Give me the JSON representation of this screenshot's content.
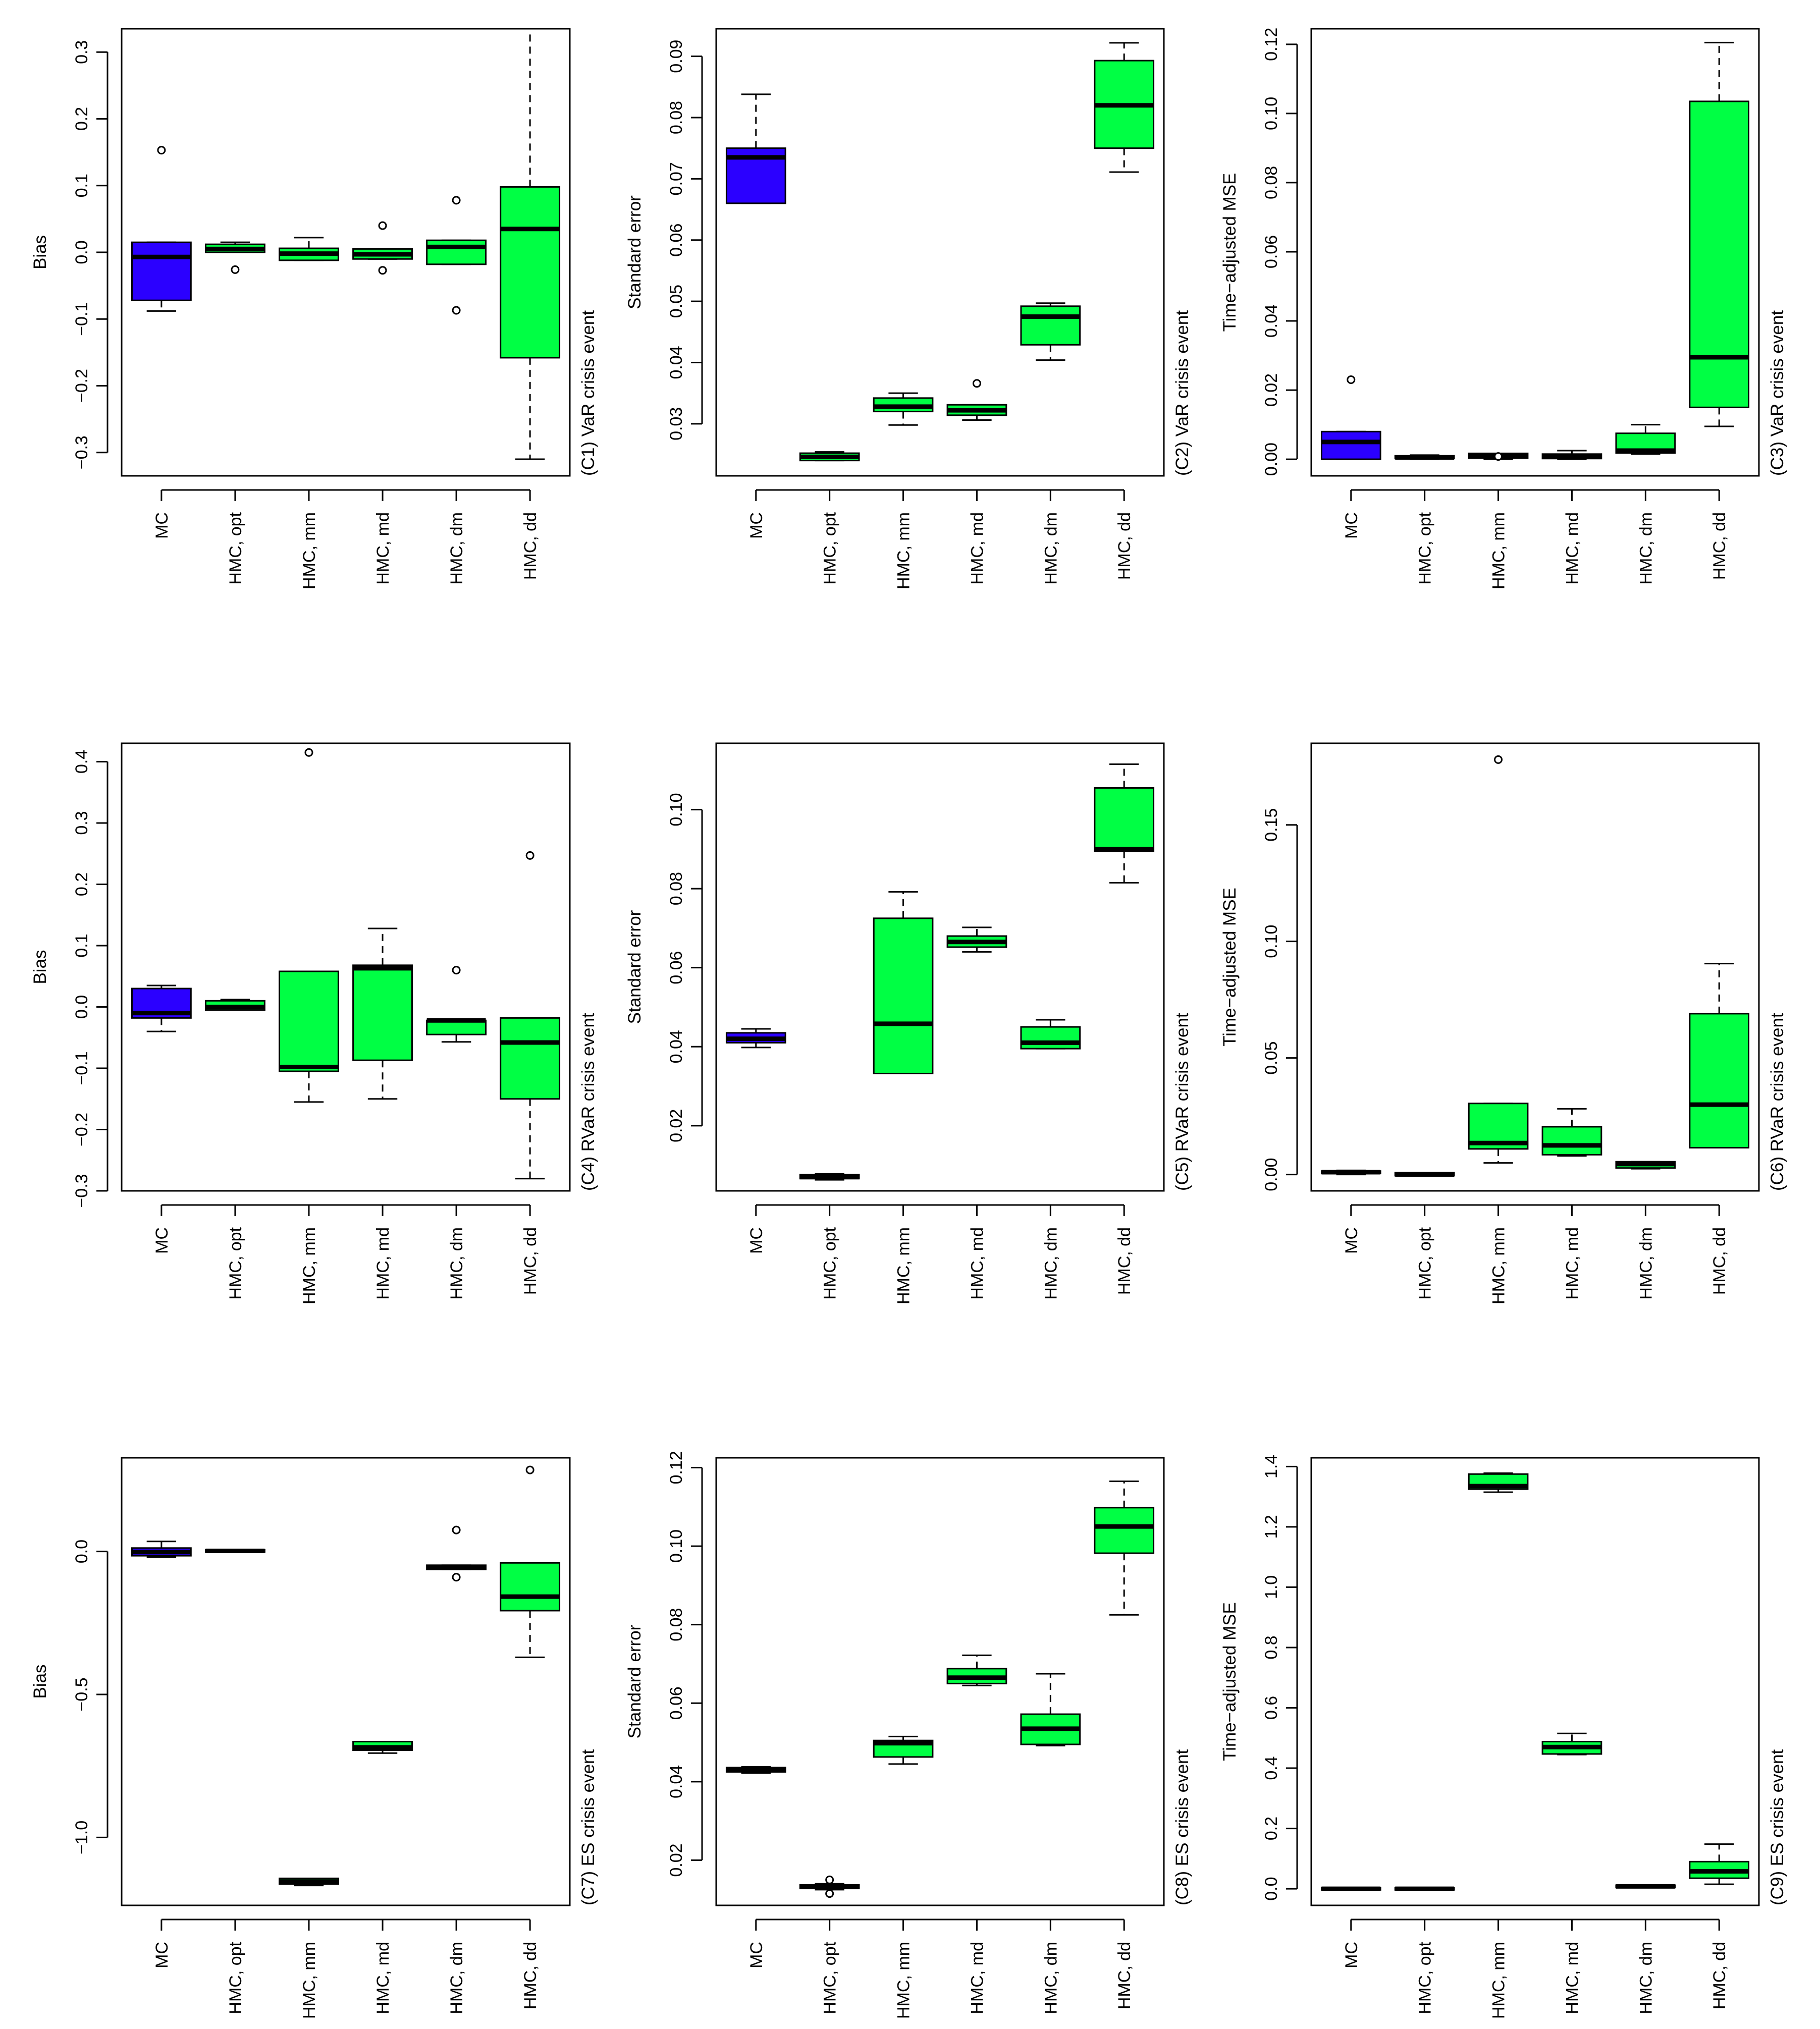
{
  "colors": {
    "mc": "#2b00ff",
    "hmc": "#00ff44",
    "line": "#000000"
  },
  "chart_data": [
    {
      "id": "C1",
      "type": "boxplot",
      "title": "(C1) VaR crisis event",
      "ylabel": "Bias",
      "ylim": [
        -0.335,
        0.335
      ],
      "yticks": [
        -0.3,
        -0.2,
        -0.1,
        0.0,
        0.1,
        0.2,
        0.3
      ],
      "ytick_labels": [
        "−0.3",
        "−0.2",
        "−0.1",
        "0.0",
        "0.1",
        "0.2",
        "0.3"
      ],
      "categories": [
        "MC",
        "HMC, opt",
        "HMC, mm",
        "HMC, md",
        "HMC, dm",
        "HMC, dd"
      ],
      "boxes": [
        {
          "name": "MC",
          "color": "mc",
          "whisker_low": -0.088,
          "q1": -0.072,
          "median": -0.007,
          "q3": 0.015,
          "whisker_high": 0.015,
          "outliers": [
            0.153
          ]
        },
        {
          "name": "HMC, opt",
          "color": "hmc",
          "whisker_low": 0.0,
          "q1": 0.0,
          "median": 0.005,
          "q3": 0.012,
          "whisker_high": 0.015,
          "outliers": [
            -0.026
          ]
        },
        {
          "name": "HMC, mm",
          "color": "hmc",
          "whisker_low": -0.012,
          "q1": -0.012,
          "median": -0.002,
          "q3": 0.006,
          "whisker_high": 0.022,
          "outliers": []
        },
        {
          "name": "HMC, md",
          "color": "hmc",
          "whisker_low": -0.01,
          "q1": -0.01,
          "median": -0.003,
          "q3": 0.005,
          "whisker_high": 0.005,
          "outliers": [
            0.04,
            -0.027
          ]
        },
        {
          "name": "HMC, dm",
          "color": "hmc",
          "whisker_low": -0.018,
          "q1": -0.018,
          "median": 0.008,
          "q3": 0.018,
          "whisker_high": 0.018,
          "outliers": [
            0.078,
            -0.087
          ]
        },
        {
          "name": "HMC, dd",
          "color": "hmc",
          "whisker_low": -0.31,
          "q1": -0.158,
          "median": 0.035,
          "q3": 0.098,
          "whisker_high": 0.335,
          "outliers": []
        }
      ]
    },
    {
      "id": "C2",
      "type": "boxplot",
      "title": "(C2) VaR crisis event",
      "ylabel": "Standard error",
      "ylim": [
        0.0215,
        0.0945
      ],
      "yticks": [
        0.03,
        0.04,
        0.05,
        0.06,
        0.07,
        0.08,
        0.09
      ],
      "ytick_labels": [
        "0.03",
        "0.04",
        "0.05",
        "0.06",
        "0.07",
        "0.08",
        "0.09"
      ],
      "categories": [
        "MC",
        "HMC, opt",
        "HMC, mm",
        "HMC, md",
        "HMC, dm",
        "HMC, dd"
      ],
      "boxes": [
        {
          "name": "MC",
          "color": "mc",
          "whisker_low": 0.066,
          "q1": 0.066,
          "median": 0.0735,
          "q3": 0.075,
          "whisker_high": 0.0838,
          "outliers": []
        },
        {
          "name": "HMC, opt",
          "color": "hmc",
          "whisker_low": 0.024,
          "q1": 0.024,
          "median": 0.0246,
          "q3": 0.0252,
          "whisker_high": 0.0254,
          "outliers": []
        },
        {
          "name": "HMC, mm",
          "color": "hmc",
          "whisker_low": 0.0298,
          "q1": 0.032,
          "median": 0.0328,
          "q3": 0.0342,
          "whisker_high": 0.035,
          "outliers": []
        },
        {
          "name": "HMC, md",
          "color": "hmc",
          "whisker_low": 0.0306,
          "q1": 0.0314,
          "median": 0.0322,
          "q3": 0.0331,
          "whisker_high": 0.0331,
          "outliers": [
            0.0366
          ]
        },
        {
          "name": "HMC, dm",
          "color": "hmc",
          "whisker_low": 0.0404,
          "q1": 0.0429,
          "median": 0.0475,
          "q3": 0.0492,
          "whisker_high": 0.0497,
          "outliers": []
        },
        {
          "name": "HMC, dd",
          "color": "hmc",
          "whisker_low": 0.0711,
          "q1": 0.075,
          "median": 0.082,
          "q3": 0.0893,
          "whisker_high": 0.0922,
          "outliers": []
        }
      ]
    },
    {
      "id": "C3",
      "type": "boxplot",
      "title": "(C3) VaR crisis event",
      "ylabel": "Time−adjusted MSE",
      "ylim": [
        -0.0048,
        0.1245
      ],
      "yticks": [
        0.0,
        0.02,
        0.04,
        0.06,
        0.08,
        0.1,
        0.12
      ],
      "ytick_labels": [
        "0.00",
        "0.02",
        "0.04",
        "0.06",
        "0.08",
        "0.10",
        "0.12"
      ],
      "categories": [
        "MC",
        "HMC, opt",
        "HMC, mm",
        "HMC, md",
        "HMC, dm",
        "HMC, dd"
      ],
      "boxes": [
        {
          "name": "MC",
          "color": "mc",
          "whisker_low": 0.0,
          "q1": 0.0,
          "median": 0.005,
          "q3": 0.008,
          "whisker_high": 0.008,
          "outliers": [
            0.023
          ]
        },
        {
          "name": "HMC, opt",
          "color": "hmc",
          "whisker_low": 0.0,
          "q1": 0.0002,
          "median": 0.0005,
          "q3": 0.001,
          "whisker_high": 0.0012,
          "outliers": []
        },
        {
          "name": "HMC, mm",
          "color": "hmc",
          "whisker_low": 0.0,
          "q1": 0.0003,
          "median": 0.001,
          "q3": 0.0017,
          "whisker_high": 0.0017,
          "outliers": [
            0.0008
          ]
        },
        {
          "name": "HMC, md",
          "color": "hmc",
          "whisker_low": 0.0,
          "q1": 0.0002,
          "median": 0.0009,
          "q3": 0.0015,
          "whisker_high": 0.0025,
          "outliers": []
        },
        {
          "name": "HMC, dm",
          "color": "hmc",
          "whisker_low": 0.0015,
          "q1": 0.0018,
          "median": 0.0025,
          "q3": 0.0075,
          "whisker_high": 0.01,
          "outliers": []
        },
        {
          "name": "HMC, dd",
          "color": "hmc",
          "whisker_low": 0.0095,
          "q1": 0.015,
          "median": 0.0295,
          "q3": 0.1035,
          "whisker_high": 0.1205,
          "outliers": []
        }
      ]
    },
    {
      "id": "C4",
      "type": "boxplot",
      "title": "(C4) RVaR crisis event",
      "ylabel": "Bias",
      "ylim": [
        -0.3,
        0.43
      ],
      "yticks": [
        -0.3,
        -0.2,
        -0.1,
        0.0,
        0.1,
        0.2,
        0.3,
        0.4
      ],
      "ytick_labels": [
        "−0.3",
        "−0.2",
        "−0.1",
        "0.0",
        "0.1",
        "0.2",
        "0.3",
        "0.4"
      ],
      "categories": [
        "MC",
        "HMC, opt",
        "HMC, mm",
        "HMC, md",
        "HMC, dm",
        "HMC, dd"
      ],
      "boxes": [
        {
          "name": "MC",
          "color": "mc",
          "whisker_low": -0.04,
          "q1": -0.018,
          "median": -0.01,
          "q3": 0.03,
          "whisker_high": 0.035,
          "outliers": []
        },
        {
          "name": "HMC, opt",
          "color": "hmc",
          "whisker_low": -0.005,
          "q1": -0.005,
          "median": 0.0,
          "q3": 0.01,
          "whisker_high": 0.012,
          "outliers": []
        },
        {
          "name": "HMC, mm",
          "color": "hmc",
          "whisker_low": -0.155,
          "q1": -0.105,
          "median": -0.098,
          "q3": 0.058,
          "whisker_high": 0.058,
          "outliers": [
            0.415
          ]
        },
        {
          "name": "HMC, md",
          "color": "hmc",
          "whisker_low": -0.15,
          "q1": -0.087,
          "median": 0.063,
          "q3": 0.068,
          "whisker_high": 0.128,
          "outliers": []
        },
        {
          "name": "HMC, dm",
          "color": "hmc",
          "whisker_low": -0.057,
          "q1": -0.045,
          "median": -0.022,
          "q3": -0.022,
          "whisker_high": -0.022,
          "outliers": [
            0.06
          ]
        },
        {
          "name": "HMC, dd",
          "color": "hmc",
          "whisker_low": -0.28,
          "q1": -0.15,
          "median": -0.058,
          "q3": -0.018,
          "whisker_high": -0.018,
          "outliers": [
            0.247
          ]
        }
      ]
    },
    {
      "id": "C5",
      "type": "boxplot",
      "title": "(C5) RVaR crisis event",
      "ylabel": "Standard error",
      "ylim": [
        0.0035,
        0.1168
      ],
      "yticks": [
        0.02,
        0.04,
        0.06,
        0.08,
        0.1
      ],
      "ytick_labels": [
        "0.02",
        "0.04",
        "0.06",
        "0.08",
        "0.10"
      ],
      "categories": [
        "MC",
        "HMC, opt",
        "HMC, mm",
        "HMC, md",
        "HMC, dm",
        "HMC, dd"
      ],
      "boxes": [
        {
          "name": "MC",
          "color": "mc",
          "whisker_low": 0.0398,
          "q1": 0.041,
          "median": 0.042,
          "q3": 0.0435,
          "whisker_high": 0.0445,
          "outliers": []
        },
        {
          "name": "HMC, opt",
          "color": "hmc",
          "whisker_low": 0.0063,
          "q1": 0.0066,
          "median": 0.007,
          "q3": 0.0076,
          "whisker_high": 0.0078,
          "outliers": []
        },
        {
          "name": "HMC, mm",
          "color": "hmc",
          "whisker_low": 0.0332,
          "q1": 0.0332,
          "median": 0.0458,
          "q3": 0.0725,
          "whisker_high": 0.0792,
          "outliers": []
        },
        {
          "name": "HMC, md",
          "color": "hmc",
          "whisker_low": 0.064,
          "q1": 0.0652,
          "median": 0.0665,
          "q3": 0.068,
          "whisker_high": 0.0702,
          "outliers": []
        },
        {
          "name": "HMC, dm",
          "color": "hmc",
          "whisker_low": 0.0395,
          "q1": 0.0395,
          "median": 0.041,
          "q3": 0.045,
          "whisker_high": 0.0468,
          "outliers": []
        },
        {
          "name": "HMC, dd",
          "color": "hmc",
          "whisker_low": 0.0815,
          "q1": 0.0895,
          "median": 0.09,
          "q3": 0.1055,
          "whisker_high": 0.1115,
          "outliers": []
        }
      ]
    },
    {
      "id": "C6",
      "type": "boxplot",
      "title": "(C6) RVaR crisis event",
      "ylabel": "Time−adjusted MSE",
      "ylim": [
        -0.007,
        0.185
      ],
      "yticks": [
        0.0,
        0.05,
        0.1,
        0.15
      ],
      "ytick_labels": [
        "0.00",
        "0.05",
        "0.10",
        "0.15"
      ],
      "categories": [
        "MC",
        "HMC, opt",
        "HMC, mm",
        "HMC, md",
        "HMC, dm",
        "HMC, dd"
      ],
      "boxes": [
        {
          "name": "MC",
          "color": "mc",
          "whisker_low": 0.0,
          "q1": 0.0005,
          "median": 0.001,
          "q3": 0.0015,
          "whisker_high": 0.0018,
          "outliers": []
        },
        {
          "name": "HMC, opt",
          "color": "hmc",
          "whisker_low": -0.0005,
          "q1": -0.0005,
          "median": 0.0,
          "q3": 0.0008,
          "whisker_high": 0.0008,
          "outliers": []
        },
        {
          "name": "HMC, mm",
          "color": "hmc",
          "whisker_low": 0.005,
          "q1": 0.011,
          "median": 0.0135,
          "q3": 0.0305,
          "whisker_high": 0.0305,
          "outliers": [
            0.178
          ]
        },
        {
          "name": "HMC, md",
          "color": "hmc",
          "whisker_low": 0.008,
          "q1": 0.0085,
          "median": 0.0125,
          "q3": 0.0205,
          "whisker_high": 0.0282,
          "outliers": []
        },
        {
          "name": "HMC, dm",
          "color": "hmc",
          "whisker_low": 0.0025,
          "q1": 0.0028,
          "median": 0.0045,
          "q3": 0.0055,
          "whisker_high": 0.0055,
          "outliers": []
        },
        {
          "name": "HMC, dd",
          "color": "hmc",
          "whisker_low": 0.0115,
          "q1": 0.0115,
          "median": 0.03,
          "q3": 0.069,
          "whisker_high": 0.0905,
          "outliers": []
        }
      ]
    },
    {
      "id": "C7",
      "type": "boxplot",
      "title": "(C7) ES crisis event",
      "ylabel": "Bias",
      "ylim": [
        -1.2375,
        0.3275
      ],
      "yticks": [
        -1.0,
        -0.5,
        0.0
      ],
      "ytick_labels": [
        "−1.0",
        "−0.5",
        "0.0"
      ],
      "categories": [
        "MC",
        "HMC, opt",
        "HMC, mm",
        "HMC, md",
        "HMC, dm",
        "HMC, dd"
      ],
      "boxes": [
        {
          "name": "MC",
          "color": "mc",
          "whisker_low": -0.02,
          "q1": -0.015,
          "median": -0.002,
          "q3": 0.012,
          "whisker_high": 0.035,
          "outliers": []
        },
        {
          "name": "HMC, opt",
          "color": "hmc",
          "whisker_low": -0.002,
          "q1": -0.002,
          "median": 0.002,
          "q3": 0.006,
          "whisker_high": 0.006,
          "outliers": []
        },
        {
          "name": "HMC, mm",
          "color": "hmc",
          "whisker_low": -1.168,
          "q1": -1.163,
          "median": -1.154,
          "q3": -1.143,
          "whisker_high": -1.143,
          "outliers": []
        },
        {
          "name": "HMC, md",
          "color": "hmc",
          "whisker_low": -0.705,
          "q1": -0.695,
          "median": -0.685,
          "q3": -0.665,
          "whisker_high": -0.665,
          "outliers": []
        },
        {
          "name": "HMC, dm",
          "color": "hmc",
          "whisker_low": -0.063,
          "q1": -0.063,
          "median": -0.055,
          "q3": -0.048,
          "whisker_high": -0.048,
          "outliers": [
            0.075,
            -0.09
          ]
        },
        {
          "name": "HMC, dd",
          "color": "hmc",
          "whisker_low": -0.37,
          "q1": -0.207,
          "median": -0.158,
          "q3": -0.04,
          "whisker_high": -0.04,
          "outliers": [
            0.285
          ]
        }
      ]
    },
    {
      "id": "C8",
      "type": "boxplot",
      "title": "(C8) ES crisis event",
      "ylabel": "Standard error",
      "ylim": [
        0.0085,
        0.1225
      ],
      "yticks": [
        0.02,
        0.04,
        0.06,
        0.08,
        0.1,
        0.12
      ],
      "ytick_labels": [
        "0.02",
        "0.04",
        "0.06",
        "0.08",
        "0.10",
        "0.12"
      ],
      "categories": [
        "MC",
        "HMC, opt",
        "HMC, mm",
        "HMC, md",
        "HMC, dm",
        "HMC, dd"
      ],
      "boxes": [
        {
          "name": "MC",
          "color": "mc",
          "whisker_low": 0.0422,
          "q1": 0.0425,
          "median": 0.0432,
          "q3": 0.0436,
          "whisker_high": 0.0438,
          "outliers": []
        },
        {
          "name": "HMC, opt",
          "color": "hmc",
          "whisker_low": 0.0125,
          "q1": 0.0128,
          "median": 0.0132,
          "q3": 0.0137,
          "whisker_high": 0.014,
          "outliers": [
            0.015,
            0.0115
          ]
        },
        {
          "name": "HMC, mm",
          "color": "hmc",
          "whisker_low": 0.0445,
          "q1": 0.0463,
          "median": 0.0498,
          "q3": 0.0505,
          "whisker_high": 0.0515,
          "outliers": []
        },
        {
          "name": "HMC, md",
          "color": "hmc",
          "whisker_low": 0.0645,
          "q1": 0.065,
          "median": 0.0665,
          "q3": 0.0688,
          "whisker_high": 0.0722,
          "outliers": []
        },
        {
          "name": "HMC, dm",
          "color": "hmc",
          "whisker_low": 0.0492,
          "q1": 0.0495,
          "median": 0.0535,
          "q3": 0.0572,
          "whisker_high": 0.0675,
          "outliers": []
        },
        {
          "name": "HMC, dd",
          "color": "hmc",
          "whisker_low": 0.0825,
          "q1": 0.0982,
          "median": 0.105,
          "q3": 0.1098,
          "whisker_high": 0.1165,
          "outliers": []
        }
      ]
    },
    {
      "id": "C9",
      "type": "boxplot",
      "title": "(C9) ES crisis event",
      "ylabel": "Time−adjusted MSE",
      "ylim": [
        -0.055,
        1.429
      ],
      "yticks": [
        0.0,
        0.2,
        0.4,
        0.6,
        0.8,
        1.0,
        1.2,
        1.4
      ],
      "ytick_labels": [
        "0.0",
        "0.2",
        "0.4",
        "0.6",
        "0.8",
        "1.0",
        "1.2",
        "1.4"
      ],
      "categories": [
        "MC",
        "HMC, opt",
        "HMC, mm",
        "HMC, md",
        "HMC, dm",
        "HMC, dd"
      ],
      "boxes": [
        {
          "name": "MC",
          "color": "mc",
          "whisker_low": -0.003,
          "q1": -0.003,
          "median": 0.0,
          "q3": 0.003,
          "whisker_high": 0.003,
          "outliers": []
        },
        {
          "name": "HMC, opt",
          "color": "hmc",
          "whisker_low": -0.003,
          "q1": -0.003,
          "median": 0.0,
          "q3": 0.003,
          "whisker_high": 0.003,
          "outliers": []
        },
        {
          "name": "HMC, mm",
          "color": "hmc",
          "whisker_low": 1.315,
          "q1": 1.325,
          "median": 1.335,
          "q3": 1.375,
          "whisker_high": 1.378,
          "outliers": []
        },
        {
          "name": "HMC, md",
          "color": "hmc",
          "whisker_low": 0.445,
          "q1": 0.447,
          "median": 0.47,
          "q3": 0.488,
          "whisker_high": 0.515,
          "outliers": []
        },
        {
          "name": "HMC, dm",
          "color": "hmc",
          "whisker_low": 0.004,
          "q1": 0.004,
          "median": 0.008,
          "q3": 0.012,
          "whisker_high": 0.012,
          "outliers": []
        },
        {
          "name": "HMC, dd",
          "color": "hmc",
          "whisker_low": 0.015,
          "q1": 0.035,
          "median": 0.058,
          "q3": 0.09,
          "whisker_high": 0.148,
          "outliers": []
        }
      ]
    }
  ]
}
